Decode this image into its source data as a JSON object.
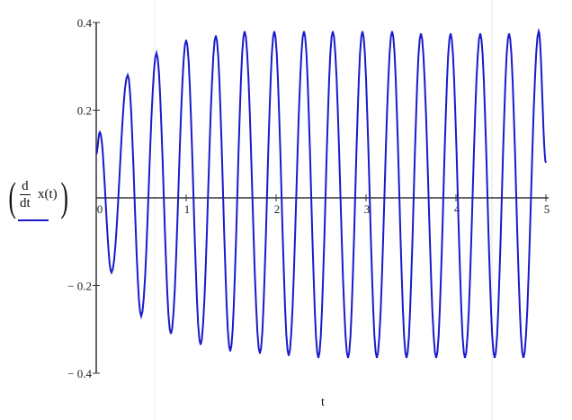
{
  "chart_data": {
    "type": "line",
    "title": "",
    "xlabel": "t",
    "ylabel": {
      "derivative_num": "d",
      "derivative_den": "dt",
      "function": "x(t)"
    },
    "xlim": [
      0,
      5
    ],
    "ylim": [
      -0.4,
      0.4
    ],
    "x_ticks": [
      "0",
      "1",
      "2",
      "3",
      "4",
      "5"
    ],
    "y_ticks": [
      "0.4",
      "0.2",
      "− 0.2",
      "− 0.4"
    ],
    "grid": false,
    "line_color": "#1a1acc",
    "series": [
      {
        "x": [
          0,
          0.04,
          0.17,
          0.35,
          0.5,
          0.67,
          0.83,
          1.0,
          1.16,
          1.33,
          1.49,
          1.65,
          1.82,
          1.98,
          2.14,
          2.31,
          2.47,
          2.63,
          2.8,
          2.96,
          3.12,
          3.29,
          3.45,
          3.61,
          3.78,
          3.94,
          4.1,
          4.27,
          4.43,
          4.59,
          4.75,
          4.92,
          5.0
        ],
        "y": [
          0.1,
          0.15,
          -0.17,
          0.28,
          -0.27,
          0.33,
          -0.31,
          0.36,
          -0.335,
          0.37,
          -0.35,
          0.38,
          -0.355,
          0.38,
          -0.36,
          0.38,
          -0.365,
          0.38,
          -0.365,
          0.38,
          -0.365,
          0.38,
          -0.365,
          0.375,
          -0.365,
          0.375,
          -0.365,
          0.375,
          -0.365,
          0.375,
          -0.365,
          0.38,
          0.08
        ]
      }
    ]
  }
}
